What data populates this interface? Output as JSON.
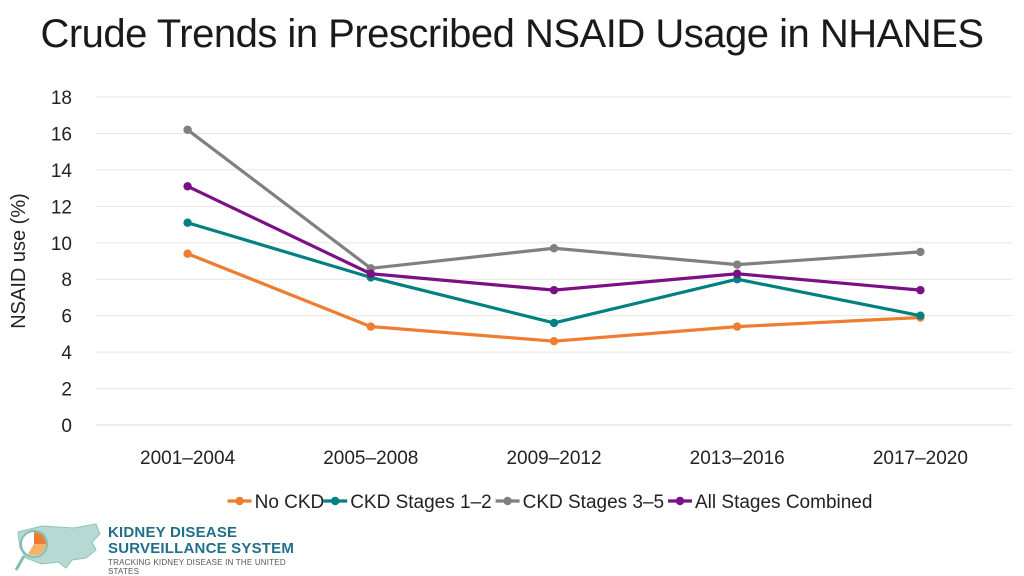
{
  "title": "Crude Trends in Prescribed NSAID Usage in NHANES",
  "logo": {
    "line1": "KIDNEY DISEASE",
    "line2": "SURVEILLANCE SYSTEM",
    "line3": "TRACKING KIDNEY DISEASE IN THE UNITED STATES"
  },
  "chart_data": {
    "type": "line",
    "title": "Crude Trends in Prescribed NSAID Usage in NHANES",
    "xlabel": "",
    "ylabel": "NSAID use (%)",
    "ylim": [
      0,
      18
    ],
    "yticks": [
      0,
      2,
      4,
      6,
      8,
      10,
      12,
      14,
      16,
      18
    ],
    "ytick_labels": [
      "0",
      "2",
      "4",
      "6",
      "8",
      "10",
      "12",
      "14",
      "16",
      "18"
    ],
    "grid": true,
    "legend_position": "bottom",
    "categories": [
      "2001–2004",
      "2005–2008",
      "2009–2012",
      "2013–2016",
      "2017–2020"
    ],
    "series": [
      {
        "name": "No CKD",
        "color": "#ed7d31",
        "values": [
          9.4,
          5.4,
          4.6,
          5.4,
          5.9
        ]
      },
      {
        "name": "CKD Stages 1–2",
        "color": "#008080",
        "values": [
          11.1,
          8.1,
          5.6,
          8.0,
          6.0
        ]
      },
      {
        "name": "CKD Stages 3–5",
        "color": "#808080",
        "values": [
          16.2,
          8.6,
          9.7,
          8.8,
          9.5
        ]
      },
      {
        "name": "All Stages Combined",
        "color": "#7b0f84",
        "values": [
          13.1,
          8.3,
          7.4,
          8.3,
          7.4
        ]
      }
    ]
  }
}
